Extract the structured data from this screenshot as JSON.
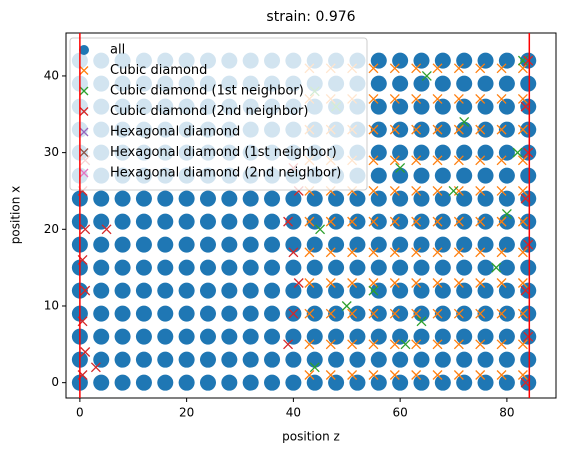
{
  "chart_data": {
    "type": "scatter",
    "title": "strain: 0.976",
    "x_label": "position z",
    "y_label": "position x",
    "xlim": [
      -2.6,
      89.2
    ],
    "ylim": [
      -2.0,
      45.6
    ],
    "xticks": [
      0,
      20,
      40,
      60,
      80
    ],
    "yticks": [
      0,
      10,
      20,
      30,
      40
    ],
    "vlines": [
      0,
      84.2
    ],
    "vline_color": "red",
    "legend": "upper left",
    "series": [
      {
        "name": "all",
        "marker": "circle",
        "color": "#1f77b4",
        "x": [
          0,
          4,
          8,
          12,
          16,
          20,
          24,
          28,
          32,
          36,
          40,
          44,
          48,
          52,
          56,
          60,
          64,
          68,
          72,
          76,
          80,
          84,
          0,
          4,
          8,
          12,
          16,
          20,
          24,
          28,
          32,
          36,
          40,
          44,
          48,
          52,
          56,
          60,
          64,
          68,
          72,
          76,
          80,
          84,
          0,
          4,
          8,
          12,
          16,
          20,
          24,
          28,
          32,
          36,
          40,
          44,
          48,
          52,
          56,
          60,
          64,
          68,
          72,
          76,
          80,
          84,
          0,
          4,
          8,
          12,
          16,
          20,
          24,
          28,
          32,
          36,
          40,
          44,
          48,
          52,
          56,
          60,
          64,
          68,
          72,
          76,
          80,
          84,
          0,
          4,
          8,
          12,
          16,
          20,
          24,
          28,
          32,
          36,
          40,
          44,
          48,
          52,
          56,
          60,
          64,
          68,
          72,
          76,
          80,
          84,
          0,
          4,
          8,
          12,
          16,
          20,
          24,
          28,
          32,
          36,
          40,
          44,
          48,
          52,
          56,
          60,
          64,
          68,
          72,
          76,
          80,
          84,
          0,
          4,
          8,
          12,
          16,
          20,
          24,
          28,
          32,
          36,
          40,
          44,
          48,
          52,
          56,
          60,
          64,
          68,
          72,
          76,
          80,
          84,
          0,
          4,
          8,
          12,
          16,
          20,
          24,
          28,
          32,
          36,
          40,
          44,
          48,
          52,
          56,
          60,
          64,
          68,
          72,
          76,
          80,
          84,
          0,
          4,
          8,
          12,
          16,
          20,
          24,
          28,
          32,
          36,
          40,
          44,
          48,
          52,
          56,
          60,
          64,
          68,
          72,
          76,
          80,
          84,
          0,
          4,
          8,
          12,
          16,
          20,
          24,
          28,
          32,
          36,
          40,
          44,
          48,
          52,
          56,
          60,
          64,
          68,
          72,
          76,
          80,
          84,
          0,
          4,
          8,
          12,
          16,
          20,
          24,
          28,
          32,
          36,
          40,
          44,
          48,
          52,
          56,
          60,
          64,
          68,
          72,
          76,
          80,
          84,
          0,
          4,
          8,
          12,
          16,
          20,
          24,
          28,
          32,
          36,
          40,
          44,
          48,
          52,
          56,
          60,
          64,
          68,
          72,
          76,
          80,
          84,
          0,
          4,
          8,
          12,
          16,
          20,
          24,
          28,
          32,
          36,
          40,
          44,
          48,
          52,
          56,
          60,
          64,
          68,
          72,
          76,
          80,
          84,
          0,
          4,
          8,
          12,
          16,
          20,
          24,
          28,
          32,
          36,
          40,
          44,
          48,
          52,
          56,
          60,
          64,
          68,
          72,
          76,
          80,
          84,
          0,
          4,
          8,
          12,
          16,
          20,
          24,
          28,
          32,
          36,
          40,
          44,
          48,
          52,
          56,
          60,
          64,
          68,
          72,
          76,
          80,
          84
        ],
        "y": [
          0,
          0,
          0,
          0,
          0,
          0,
          0,
          0,
          0,
          0,
          0,
          0,
          0,
          0,
          0,
          0,
          0,
          0,
          0,
          0,
          0,
          0,
          3,
          3,
          3,
          3,
          3,
          3,
          3,
          3,
          3,
          3,
          3,
          3,
          3,
          3,
          3,
          3,
          3,
          3,
          3,
          3,
          3,
          3,
          6,
          6,
          6,
          6,
          6,
          6,
          6,
          6,
          6,
          6,
          6,
          6,
          6,
          6,
          6,
          6,
          6,
          6,
          6,
          6,
          6,
          6,
          9,
          9,
          9,
          9,
          9,
          9,
          9,
          9,
          9,
          9,
          9,
          9,
          9,
          9,
          9,
          9,
          9,
          9,
          9,
          9,
          9,
          9,
          12,
          12,
          12,
          12,
          12,
          12,
          12,
          12,
          12,
          12,
          12,
          12,
          12,
          12,
          12,
          12,
          12,
          12,
          12,
          12,
          12,
          12,
          15,
          15,
          15,
          15,
          15,
          15,
          15,
          15,
          15,
          15,
          15,
          15,
          15,
          15,
          15,
          15,
          15,
          15,
          15,
          15,
          15,
          15,
          18,
          18,
          18,
          18,
          18,
          18,
          18,
          18,
          18,
          18,
          18,
          18,
          18,
          18,
          18,
          18,
          18,
          18,
          18,
          18,
          18,
          18,
          21,
          21,
          21,
          21,
          21,
          21,
          21,
          21,
          21,
          21,
          21,
          21,
          21,
          21,
          21,
          21,
          21,
          21,
          21,
          21,
          21,
          21,
          24,
          24,
          24,
          24,
          24,
          24,
          24,
          24,
          24,
          24,
          24,
          24,
          24,
          24,
          24,
          24,
          24,
          24,
          24,
          24,
          24,
          24,
          27,
          27,
          27,
          27,
          27,
          27,
          27,
          27,
          27,
          27,
          27,
          27,
          27,
          27,
          27,
          27,
          27,
          27,
          27,
          27,
          27,
          27,
          30,
          30,
          30,
          30,
          30,
          30,
          30,
          30,
          30,
          30,
          30,
          30,
          30,
          30,
          30,
          30,
          30,
          30,
          30,
          30,
          30,
          30,
          33,
          33,
          33,
          33,
          33,
          33,
          33,
          33,
          33,
          33,
          33,
          33,
          33,
          33,
          33,
          33,
          33,
          33,
          33,
          33,
          33,
          33,
          36,
          36,
          36,
          36,
          36,
          36,
          36,
          36,
          36,
          36,
          36,
          36,
          36,
          36,
          36,
          36,
          36,
          36,
          36,
          36,
          36,
          36,
          39,
          39,
          39,
          39,
          39,
          39,
          39,
          39,
          39,
          39,
          39,
          39,
          39,
          39,
          39,
          39,
          39,
          39,
          39,
          39,
          39,
          39,
          42,
          42,
          42,
          42,
          42,
          42,
          42,
          42,
          42,
          42,
          42,
          42,
          42,
          42,
          42,
          42,
          42,
          42,
          42,
          42,
          42,
          42
        ]
      },
      {
        "name": "Cubic diamond",
        "marker": "x",
        "color": "#ff7f0e",
        "x": [
          43,
          47,
          51,
          55,
          59,
          63,
          67,
          71,
          75,
          79,
          83,
          43,
          47,
          51,
          55,
          59,
          63,
          67,
          71,
          75,
          79,
          83,
          43,
          47,
          51,
          55,
          59,
          63,
          67,
          71,
          75,
          79,
          83,
          43,
          47,
          51,
          55,
          59,
          63,
          67,
          71,
          75,
          79,
          83,
          43,
          47,
          51,
          55,
          59,
          63,
          67,
          71,
          75,
          79,
          83,
          43,
          47,
          51,
          55,
          59,
          63,
          67,
          71,
          75,
          79,
          83,
          43,
          47,
          51,
          55,
          59,
          63,
          67,
          71,
          75,
          79,
          83,
          43,
          47,
          51,
          55,
          59,
          63,
          67,
          71,
          75,
          79,
          83,
          43,
          47,
          51,
          55,
          59,
          63,
          67,
          71,
          75,
          79,
          83,
          43,
          47,
          51,
          55,
          59,
          63,
          67,
          71,
          75,
          79,
          83,
          43,
          47,
          51,
          55,
          59,
          63,
          67,
          71,
          75,
          79,
          83
        ],
        "y": [
          1,
          1,
          1,
          1,
          1,
          1,
          1,
          1,
          1,
          1,
          1,
          5,
          5,
          5,
          5,
          5,
          5,
          5,
          5,
          5,
          5,
          5,
          9,
          9,
          9,
          9,
          9,
          9,
          9,
          9,
          9,
          9,
          9,
          13,
          13,
          13,
          13,
          13,
          13,
          13,
          13,
          13,
          13,
          13,
          17,
          17,
          17,
          17,
          17,
          17,
          17,
          17,
          17,
          17,
          17,
          21,
          21,
          21,
          21,
          21,
          21,
          21,
          21,
          21,
          21,
          21,
          25,
          25,
          25,
          25,
          25,
          25,
          25,
          25,
          25,
          25,
          25,
          29,
          29,
          29,
          29,
          29,
          29,
          29,
          29,
          29,
          29,
          29,
          33,
          33,
          33,
          33,
          33,
          33,
          33,
          33,
          33,
          33,
          33,
          37,
          37,
          37,
          37,
          37,
          37,
          37,
          37,
          37,
          37,
          37,
          41,
          41,
          41,
          41,
          41,
          41,
          41,
          41,
          41,
          41,
          41
        ]
      },
      {
        "name": "Cubic diamond (1st neighbor)",
        "marker": "x",
        "color": "#2ca02c",
        "x": [
          44,
          50,
          61,
          65,
          70,
          78,
          82,
          83,
          45,
          48,
          55,
          60,
          64,
          72,
          80,
          44
        ],
        "y": [
          2,
          10,
          5,
          40,
          25,
          15,
          30,
          42,
          20,
          36,
          12,
          28,
          8,
          34,
          22,
          38
        ]
      },
      {
        "name": "Cubic diamond (2nd neighbor)",
        "marker": "x",
        "color": "#d62728",
        "x": [
          0.5,
          1,
          0.5,
          1,
          0.5,
          1,
          0.5,
          1,
          83.5,
          84,
          83.5,
          84,
          83.5,
          84,
          83.5,
          84,
          39,
          40,
          41,
          40,
          39,
          41,
          40,
          3,
          5
        ],
        "y": [
          1,
          4,
          8,
          12,
          16,
          20,
          25,
          29,
          0,
          6,
          12,
          18,
          24,
          30,
          36,
          42,
          5,
          9,
          13,
          17,
          21,
          25,
          28,
          2,
          20
        ]
      },
      {
        "name": "Hexagonal diamond",
        "marker": "x",
        "color": "#9467bd",
        "x": [],
        "y": []
      },
      {
        "name": "Hexagonal diamond (1st neighbor)",
        "marker": "x",
        "color": "#8c564b",
        "x": [],
        "y": []
      },
      {
        "name": "Hexagonal diamond (2nd neighbor)",
        "marker": "x",
        "color": "#e377c2",
        "x": [],
        "y": []
      }
    ]
  }
}
